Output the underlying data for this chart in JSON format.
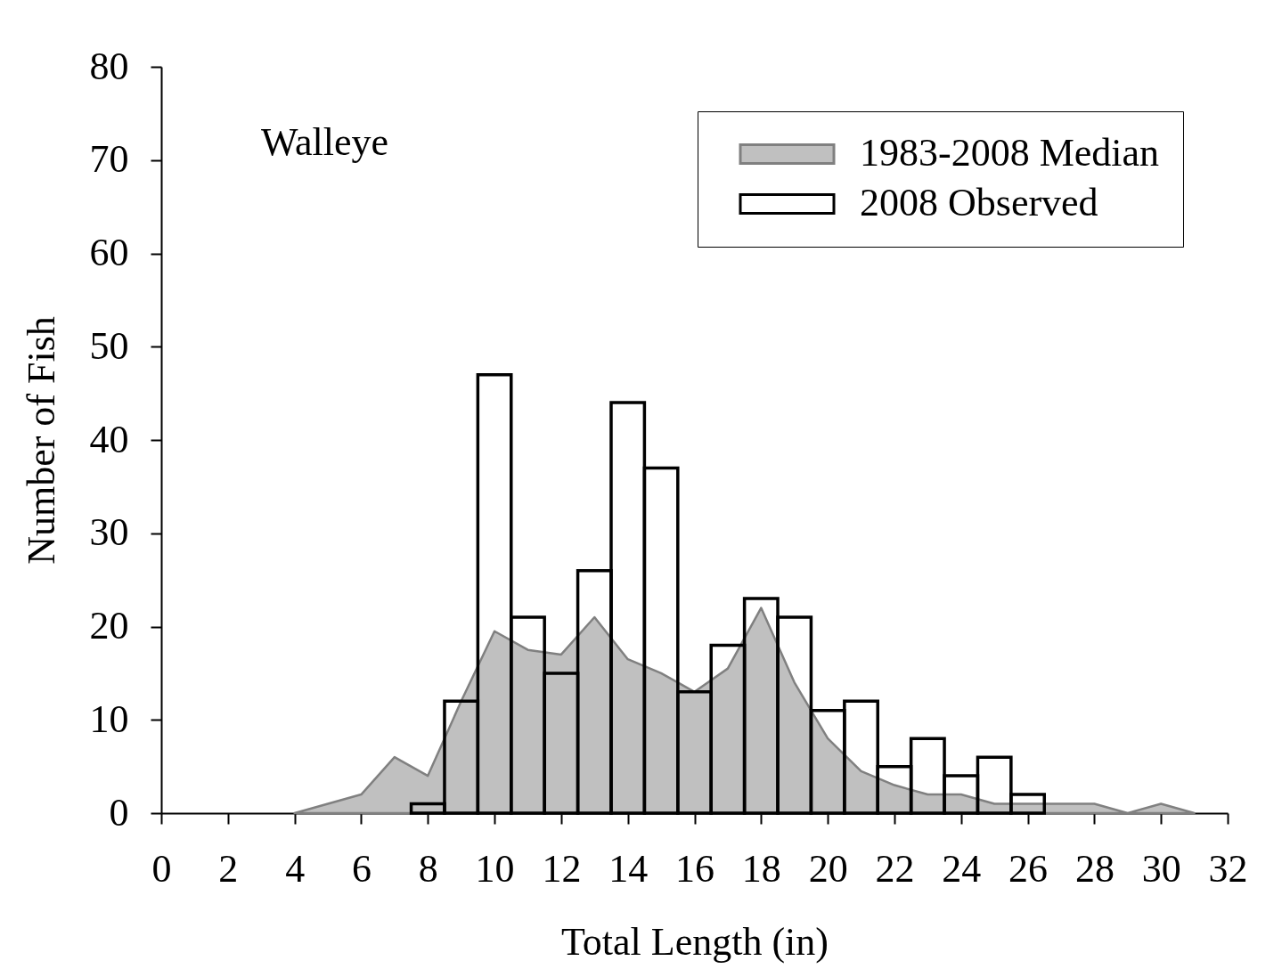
{
  "chart_data": {
    "type": "histogram",
    "xlabel": "Total Length (in)",
    "ylabel": "Number of Fish",
    "annotations": [
      "Walleye"
    ],
    "xlim": [
      0,
      32
    ],
    "xticks": [
      0,
      2,
      4,
      6,
      8,
      10,
      12,
      14,
      16,
      18,
      20,
      22,
      24,
      26,
      28,
      30,
      32
    ],
    "ylim": [
      0,
      80
    ],
    "yticks": [
      0,
      10,
      20,
      30,
      40,
      50,
      60,
      70,
      80
    ],
    "legend": "top right",
    "series": [
      {
        "name": "1983-2008 Median",
        "type": "area",
        "color": "#c0c0c0",
        "x": [
          4,
          5,
          6,
          7,
          8,
          9,
          10,
          11,
          12,
          13,
          14,
          15,
          16,
          17,
          18,
          19,
          20,
          21,
          22,
          23,
          24,
          25,
          26,
          27,
          28,
          29,
          30,
          31
        ],
        "values": [
          0,
          1,
          2,
          6,
          4,
          12,
          19.5,
          17.5,
          17,
          21,
          16.5,
          15,
          13,
          15.5,
          22,
          14,
          8,
          4.5,
          3,
          2,
          2,
          1,
          1,
          1,
          1,
          0,
          1,
          0
        ]
      },
      {
        "name": "2008 Observed",
        "color": "#000000",
        "bins": [
          7.5,
          8.5,
          9.5,
          10.5,
          11.5,
          12.5,
          13.5,
          14.5,
          15.5,
          16.5,
          17.5,
          18.5,
          19.5,
          20.5,
          21.5,
          22.5,
          23.5,
          24.5,
          25.5,
          26.5
        ],
        "values": [
          1,
          12,
          47,
          21,
          15,
          26,
          44,
          37,
          13,
          18,
          23,
          21,
          11,
          12,
          5,
          8,
          4,
          6,
          2
        ]
      }
    ]
  }
}
